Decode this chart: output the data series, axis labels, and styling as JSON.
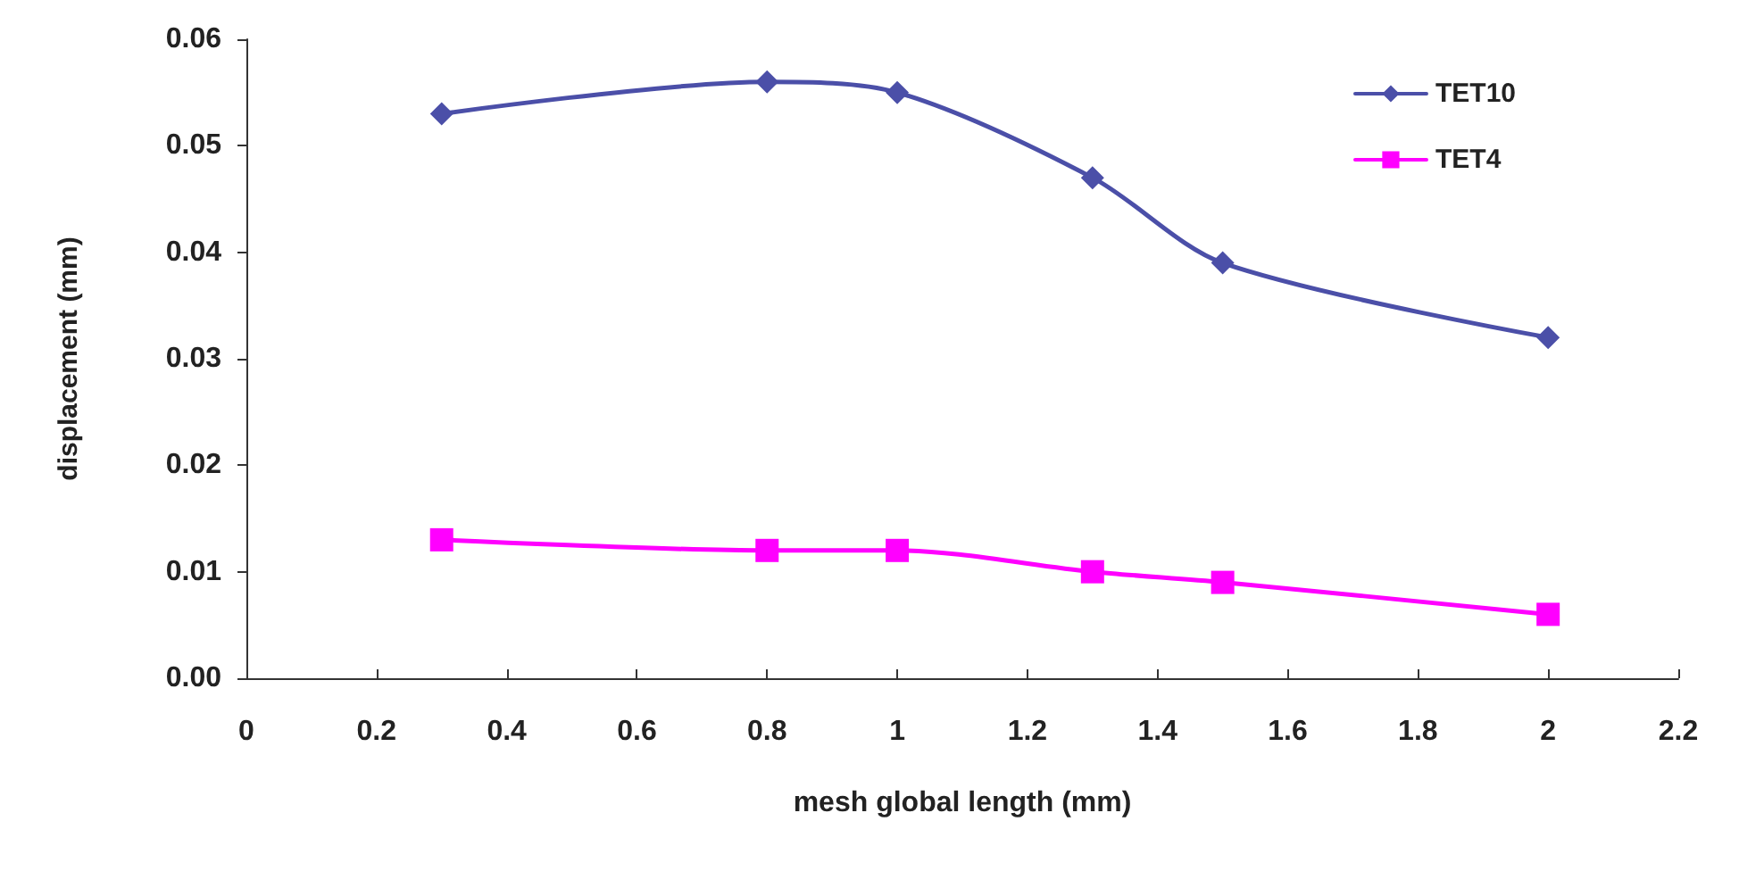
{
  "chart_data": {
    "type": "line",
    "xlabel": "mesh global length (mm)",
    "ylabel": "displacement (mm)",
    "x": [
      0.3,
      0.8,
      1,
      1.3,
      1.5,
      2
    ],
    "series": [
      {
        "name": "TET10",
        "color": "#4b4fa8",
        "marker": "diamond",
        "values": [
          0.053,
          0.056,
          0.055,
          0.047,
          0.039,
          0.032
        ]
      },
      {
        "name": "TET4",
        "color": "#ff00ff",
        "marker": "square",
        "values": [
          0.013,
          0.012,
          0.012,
          0.01,
          0.009,
          0.006
        ]
      }
    ],
    "xlim": [
      0,
      2.2
    ],
    "xticks": [
      0,
      0.2,
      0.4,
      0.6,
      0.8,
      1,
      1.2,
      1.4,
      1.6,
      1.8,
      2,
      2.2
    ],
    "ylim": [
      0,
      0.06
    ],
    "yticks": [
      {
        "value": 0,
        "label": "0.00"
      },
      {
        "value": 0.01,
        "label": "0.01"
      },
      {
        "value": 0.02,
        "label": "0.02"
      },
      {
        "value": 0.03,
        "label": "0.03"
      },
      {
        "value": 0.04,
        "label": "0.04"
      },
      {
        "value": 0.05,
        "label": "0.05"
      },
      {
        "value": 0.06,
        "label": "0.06"
      }
    ],
    "grid": false,
    "legend": "top right"
  }
}
